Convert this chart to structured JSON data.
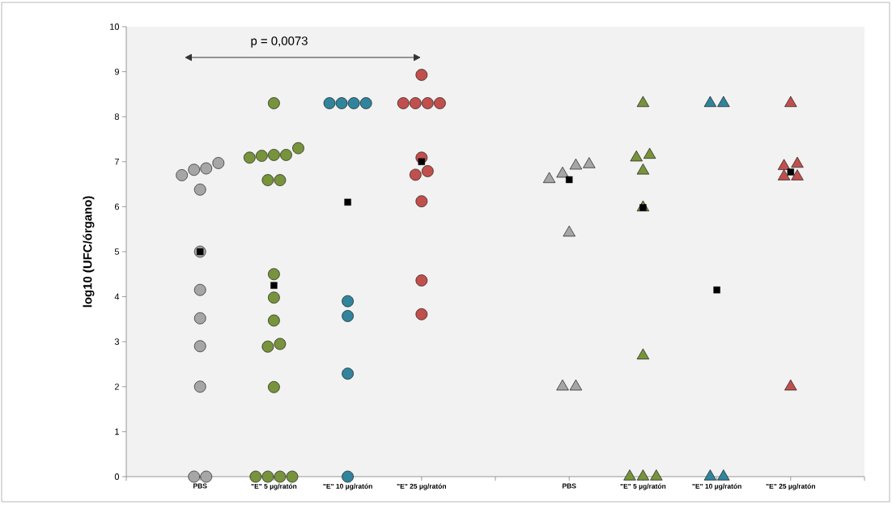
{
  "chart_data": {
    "type": "scatter",
    "ylabel": "log10 (UFC/órgano)",
    "annotations": [
      "p = 0,0073"
    ],
    "categories": [
      "PBS",
      "\"E\" 5 µg/ratón",
      "\"E\" 10 µg/ratón",
      "\"E\" 25 µg/ratón",
      null,
      "PBS",
      "\"E\" 5 µg/ratón",
      "\"E\" 10 µg/ratón",
      "\"E\" 25 µg/ratón"
    ],
    "ylim": [
      0,
      10
    ],
    "yticks": [
      0,
      1,
      2,
      3,
      4,
      5,
      6,
      7,
      8,
      9,
      10
    ],
    "grid": false,
    "series": [
      {
        "marker": "circle",
        "colors": [
          "#a6a6a6",
          "#77933c",
          "#31849b",
          "#c0504d",
          null,
          null,
          null,
          null,
          null
        ],
        "values": [
          6.85,
          8.3,
          8.3,
          8.93,
          null,
          null,
          null,
          null,
          null
        ]
      },
      {
        "marker": "circle",
        "colors": [
          "#a6a6a6",
          "#77933c",
          "#31849b",
          "#c0504d",
          null,
          null,
          null,
          null,
          null
        ],
        "values": [
          6.97,
          7.13,
          8.3,
          8.3,
          null,
          null,
          null,
          null,
          null
        ]
      },
      {
        "marker": "circle",
        "colors": [
          "#a6a6a6",
          "#77933c",
          "#31849b",
          "#c0504d",
          null,
          null,
          null,
          null,
          null
        ],
        "values": [
          6.82,
          7.15,
          8.3,
          8.3,
          null,
          null,
          null,
          null,
          null
        ]
      },
      {
        "marker": "circle",
        "colors": [
          "#a6a6a6",
          "#77933c",
          "#31849b",
          "#c0504d",
          null,
          null,
          null,
          null,
          null
        ],
        "values": [
          6.7,
          7.3,
          8.3,
          8.3,
          null,
          null,
          null,
          null,
          null
        ]
      },
      {
        "marker": "circle",
        "colors": [
          "#a6a6a6",
          "#77933c",
          "#31849b",
          "#c0504d",
          null,
          null,
          null,
          null,
          null
        ],
        "values": [
          6.38,
          7.09,
          3.9,
          8.3,
          null,
          null,
          null,
          null,
          null
        ]
      },
      {
        "marker": "circle",
        "colors": [
          "#a6a6a6",
          "#77933c",
          "#31849b",
          "#c0504d",
          null,
          null,
          null,
          null,
          null
        ],
        "values": [
          5.0,
          7.15,
          3.57,
          7.09,
          null,
          null,
          null,
          null,
          null
        ]
      },
      {
        "marker": "circle",
        "colors": [
          "#a6a6a6",
          "#77933c",
          "#31849b",
          "#c0504d",
          null,
          null,
          null,
          null,
          null
        ],
        "values": [
          4.15,
          6.59,
          2.29,
          6.71,
          null,
          null,
          null,
          null,
          null
        ]
      },
      {
        "marker": "circle",
        "colors": [
          "#a6a6a6",
          "#77933c",
          "#31849b",
          "#c0504d",
          null,
          null,
          null,
          null,
          null
        ],
        "values": [
          3.52,
          6.59,
          0,
          6.79,
          null,
          null,
          null,
          null,
          null
        ]
      },
      {
        "marker": "circle",
        "colors": [
          "#a6a6a6",
          "#77933c",
          null,
          "#c0504d",
          null,
          null,
          null,
          null,
          null
        ],
        "values": [
          2.9,
          4.5,
          null,
          6.12,
          null,
          null,
          null,
          null,
          null
        ]
      },
      {
        "marker": "circle",
        "colors": [
          "#a6a6a6",
          "#77933c",
          null,
          "#c0504d",
          null,
          null,
          null,
          null,
          null
        ],
        "values": [
          2.0,
          3.98,
          null,
          4.36,
          null,
          null,
          null,
          null,
          null
        ]
      },
      {
        "marker": "circle",
        "colors": [
          "#a6a6a6",
          "#77933c",
          null,
          "#c0504d",
          null,
          null,
          null,
          null,
          null
        ],
        "values": [
          0,
          3.47,
          null,
          3.61,
          null,
          null,
          null,
          null,
          null
        ]
      },
      {
        "marker": "circle",
        "colors": [
          "#a6a6a6",
          "#77933c",
          null,
          null,
          null,
          null,
          null,
          null,
          null
        ],
        "values": [
          0,
          2.95,
          null,
          null,
          null,
          null,
          null,
          null,
          null
        ]
      },
      {
        "marker": "circle",
        "colors": [
          null,
          "#77933c",
          null,
          null,
          null,
          null,
          null,
          null,
          null
        ],
        "values": [
          null,
          2.89,
          null,
          null,
          null,
          null,
          null,
          null,
          null
        ]
      },
      {
        "marker": "circle",
        "colors": [
          null,
          "#77933c",
          null,
          null,
          null,
          null,
          null,
          null,
          null
        ],
        "values": [
          null,
          1.99,
          null,
          null,
          null,
          null,
          null,
          null,
          null
        ]
      },
      {
        "marker": "circle",
        "colors": [
          null,
          "#77933c",
          null,
          null,
          null,
          null,
          null,
          null,
          null
        ],
        "values": [
          null,
          0,
          null,
          null,
          null,
          null,
          null,
          null,
          null
        ]
      },
      {
        "marker": "circle",
        "colors": [
          null,
          "#77933c",
          null,
          null,
          null,
          null,
          null,
          null,
          null
        ],
        "values": [
          null,
          0,
          null,
          null,
          null,
          null,
          null,
          null,
          null
        ]
      },
      {
        "marker": "circle",
        "colors": [
          null,
          "#77933c",
          null,
          null,
          null,
          null,
          null,
          null,
          null
        ],
        "values": [
          null,
          0,
          null,
          null,
          null,
          null,
          null,
          null,
          null
        ]
      },
      {
        "marker": "circle",
        "colors": [
          null,
          "#77933c",
          null,
          null,
          null,
          null,
          null,
          null,
          null
        ],
        "values": [
          null,
          0,
          null,
          null,
          null,
          null,
          null,
          null,
          null
        ]
      },
      {
        "marker": "triangle",
        "colors": [
          null,
          null,
          null,
          null,
          null,
          "#a6a6a6",
          "#77933c",
          "#31849b",
          "#c0504d"
        ],
        "values": [
          null,
          null,
          null,
          null,
          null,
          6.91,
          8.3,
          8.3,
          8.3
        ]
      },
      {
        "marker": "triangle",
        "colors": [
          null,
          null,
          null,
          null,
          null,
          "#a6a6a6",
          "#77933c",
          "#31849b",
          "#c0504d"
        ],
        "values": [
          null,
          null,
          null,
          null,
          null,
          6.94,
          7.09,
          8.3,
          6.95
        ]
      },
      {
        "marker": "triangle",
        "colors": [
          null,
          null,
          null,
          null,
          null,
          "#a6a6a6",
          "#77933c",
          "#31849b",
          "#c0504d"
        ],
        "values": [
          null,
          null,
          null,
          null,
          null,
          6.73,
          7.15,
          0,
          6.9
        ]
      },
      {
        "marker": "triangle",
        "colors": [
          null,
          null,
          null,
          null,
          null,
          "#a6a6a6",
          "#77933c",
          "#31849b",
          "#c0504d"
        ],
        "values": [
          null,
          null,
          null,
          null,
          null,
          6.61,
          6.8,
          0,
          6.67
        ]
      },
      {
        "marker": "triangle",
        "colors": [
          null,
          null,
          null,
          null,
          null,
          "#a6a6a6",
          "#77933c",
          null,
          "#c0504d"
        ],
        "values": [
          null,
          null,
          null,
          null,
          null,
          5.42,
          5.98,
          null,
          6.67
        ]
      },
      {
        "marker": "triangle",
        "colors": [
          null,
          null,
          null,
          null,
          null,
          "#a6a6a6",
          "#77933c",
          null,
          "#c0504d"
        ],
        "values": [
          null,
          null,
          null,
          null,
          null,
          2.0,
          2.69,
          null,
          2.0
        ]
      },
      {
        "marker": "triangle",
        "colors": [
          null,
          null,
          null,
          null,
          null,
          "#a6a6a6",
          "#77933c",
          null,
          null
        ],
        "values": [
          null,
          null,
          null,
          null,
          null,
          2.0,
          0,
          null,
          null
        ]
      },
      {
        "marker": "triangle",
        "colors": [
          null,
          null,
          null,
          null,
          null,
          null,
          "#77933c",
          null,
          null
        ],
        "values": [
          null,
          null,
          null,
          null,
          null,
          null,
          0,
          null,
          null
        ]
      },
      {
        "marker": "triangle",
        "colors": [
          null,
          null,
          null,
          null,
          null,
          null,
          "#77933c",
          null,
          null
        ],
        "values": [
          null,
          null,
          null,
          null,
          null,
          null,
          0,
          null,
          null
        ]
      },
      {
        "marker": "square",
        "color": "#000000",
        "values": [
          5.0,
          4.25,
          6.1,
          7.0,
          null,
          6.6,
          5.98,
          4.15,
          6.77
        ]
      }
    ]
  }
}
